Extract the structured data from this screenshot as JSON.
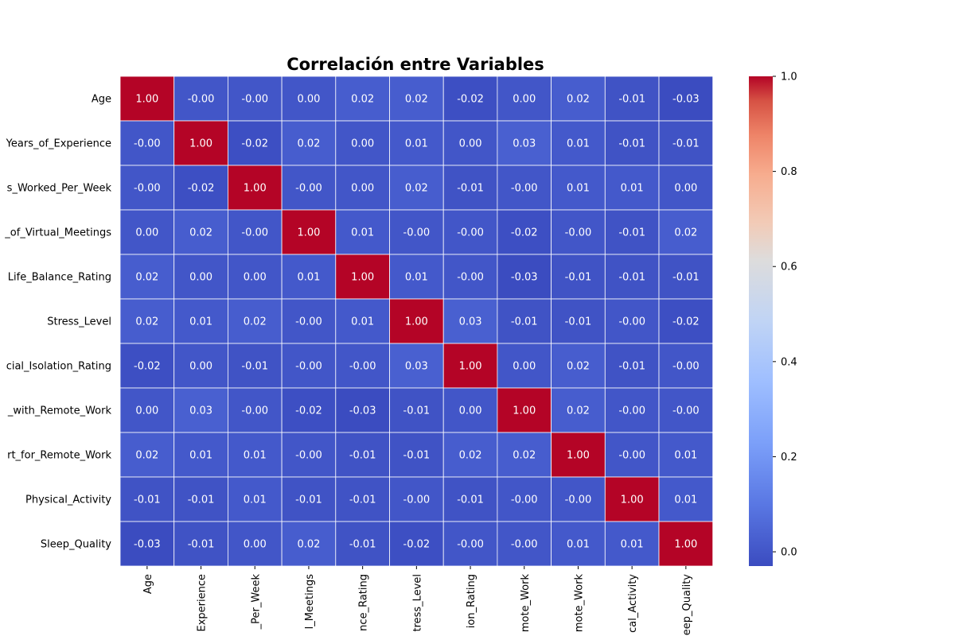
{
  "chart_data": {
    "type": "heatmap",
    "title": "Correlación entre Variables",
    "row_labels": [
      "Age",
      "Years_of_Experience",
      "s_Worked_Per_Week",
      "_of_Virtual_Meetings",
      "Life_Balance_Rating",
      "Stress_Level",
      "cial_Isolation_Rating",
      "_with_Remote_Work",
      "rt_for_Remote_Work",
      "Physical_Activity",
      "Sleep_Quality"
    ],
    "col_labels": [
      "Age",
      "Experience",
      "_Per_Week",
      "l_Meetings",
      "nce_Rating",
      "tress_Level",
      "ion_Rating",
      "mote_Work",
      "mote_Work",
      "cal_Activity",
      "eep_Quality"
    ],
    "cell_text": [
      [
        "1.00",
        "-0.00",
        "-0.00",
        "0.00",
        "0.02",
        "0.02",
        "-0.02",
        "0.00",
        "0.02",
        "-0.01",
        "-0.03"
      ],
      [
        "-0.00",
        "1.00",
        "-0.02",
        "0.02",
        "0.00",
        "0.01",
        "0.00",
        "0.03",
        "0.01",
        "-0.01",
        "-0.01"
      ],
      [
        "-0.00",
        "-0.02",
        "1.00",
        "-0.00",
        "0.00",
        "0.02",
        "-0.01",
        "-0.00",
        "0.01",
        "0.01",
        "0.00"
      ],
      [
        "0.00",
        "0.02",
        "-0.00",
        "1.00",
        "0.01",
        "-0.00",
        "-0.00",
        "-0.02",
        "-0.00",
        "-0.01",
        "0.02"
      ],
      [
        "0.02",
        "0.00",
        "0.00",
        "0.01",
        "1.00",
        "0.01",
        "-0.00",
        "-0.03",
        "-0.01",
        "-0.01",
        "-0.01"
      ],
      [
        "0.02",
        "0.01",
        "0.02",
        "-0.00",
        "0.01",
        "1.00",
        "0.03",
        "-0.01",
        "-0.01",
        "-0.00",
        "-0.02"
      ],
      [
        "-0.02",
        "0.00",
        "-0.01",
        "-0.00",
        "-0.00",
        "0.03",
        "1.00",
        "0.00",
        "0.02",
        "-0.01",
        "-0.00"
      ],
      [
        "0.00",
        "0.03",
        "-0.00",
        "-0.02",
        "-0.03",
        "-0.01",
        "0.00",
        "1.00",
        "0.02",
        "-0.00",
        "-0.00"
      ],
      [
        "0.02",
        "0.01",
        "0.01",
        "-0.00",
        "-0.01",
        "-0.01",
        "0.02",
        "0.02",
        "1.00",
        "-0.00",
        "0.01"
      ],
      [
        "-0.01",
        "-0.01",
        "0.01",
        "-0.01",
        "-0.01",
        "-0.00",
        "-0.01",
        "-0.00",
        "-0.00",
        "1.00",
        "0.01"
      ],
      [
        "-0.03",
        "-0.01",
        "0.00",
        "0.02",
        "-0.01",
        "-0.02",
        "-0.00",
        "-0.00",
        "0.01",
        "0.01",
        "1.00"
      ]
    ],
    "colorbar": {
      "min": -0.03,
      "max": 1.0,
      "ticks": [
        "0.0",
        "0.2",
        "0.4",
        "0.6",
        "0.8",
        "1.0"
      ],
      "colormap": "coolwarm"
    },
    "cell_text_color": "#ffffff",
    "cell_border_color": "#ffffff",
    "grid": false,
    "legend": "colorbar-right"
  }
}
